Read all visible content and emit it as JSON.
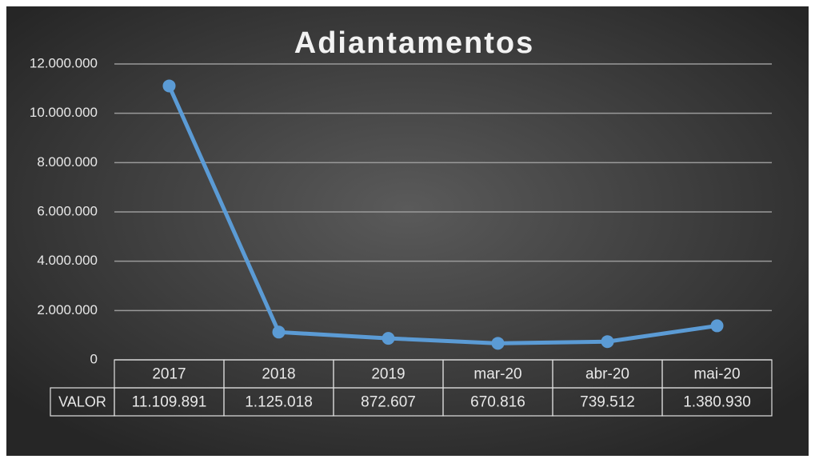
{
  "chart_data": {
    "type": "line",
    "title": "Adiantamentos",
    "categories": [
      "2017",
      "2018",
      "2019",
      "mar-20",
      "abr-20",
      "mai-20"
    ],
    "series": [
      {
        "name": "VALOR",
        "color": "#5b9bd5",
        "values": [
          11109891,
          1125018,
          872607,
          670816,
          739512,
          1380930
        ],
        "value_labels": [
          "11.109.891",
          "1.125.018",
          "872.607",
          "670.816",
          "739.512",
          "1.380.930"
        ]
      }
    ],
    "ylim": [
      0,
      12000000
    ],
    "yticks": [
      0,
      {
        "value": 2000000,
        "label": "2.000.000"
      },
      {
        "value": 4000000,
        "label": "4.000.000"
      },
      {
        "value": 6000000,
        "label": "6.000.000"
      },
      {
        "value": 8000000,
        "label": "8.000.000"
      },
      {
        "value": 10000000,
        "label": "10.000.000"
      },
      {
        "value": 12000000,
        "label": "12.000.000"
      }
    ],
    "grid": true
  }
}
